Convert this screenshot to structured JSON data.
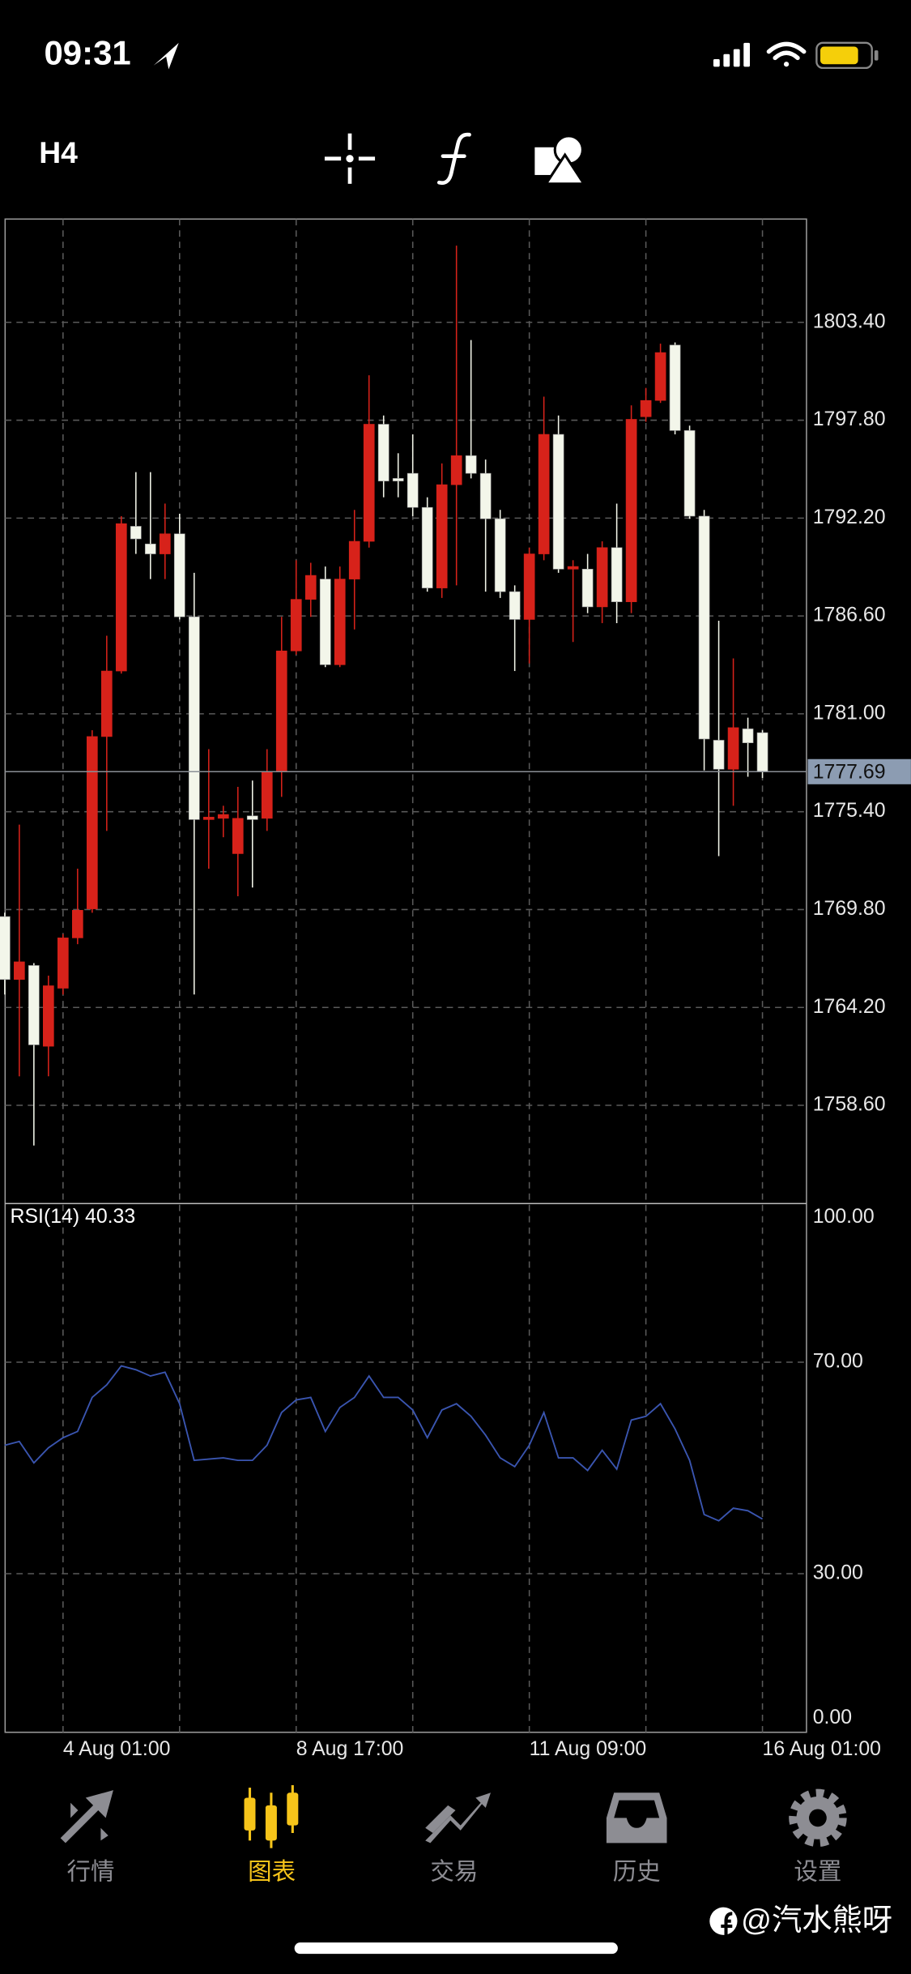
{
  "status_bar": {
    "time": "09:31"
  },
  "toolbar": {
    "timeframe": "H4"
  },
  "chart_data": [
    {
      "type": "candlestick",
      "categories": [
        null,
        null,
        null,
        null,
        "4 Aug 01:00",
        null,
        null,
        null,
        null,
        null,
        null,
        null,
        null,
        null,
        null,
        null,
        null,
        null,
        null,
        null,
        "8 Aug 17:00",
        null,
        null,
        null,
        null,
        null,
        null,
        null,
        null,
        null,
        null,
        null,
        null,
        null,
        null,
        null,
        "11 Aug 09:00",
        null,
        null,
        null,
        null,
        null,
        null,
        null,
        null,
        null,
        null,
        null,
        null,
        null,
        null,
        null,
        "16 Aug 01:00"
      ],
      "open": [
        1769.4,
        1765.8,
        1766.6,
        1761.98,
        1765.3,
        1768.18,
        1769.84,
        1779.7,
        1783.45,
        1791.73,
        1790.72,
        1790.15,
        1791.3,
        1786.55,
        1774.95,
        1775.02,
        1773.0,
        1775.16,
        1775.02,
        1777.69,
        1784.6,
        1787.55,
        1788.71,
        1783.81,
        1788.71,
        1790.87,
        1797.57,
        1794.47,
        1794.76,
        1792.81,
        1788.2,
        1794.11,
        1795.77,
        1794.76,
        1792.16,
        1787.99,
        1786.4,
        1790.15,
        1796.99,
        1789.28,
        1789.28,
        1787.12,
        1790.51,
        1787.41,
        1798.0,
        1798.93,
        1802.1,
        1797.21,
        1792.31,
        1779.49,
        1777.83,
        1780.14,
        1779.92
      ],
      "high": [
        1769.62,
        1774.66,
        1766.74,
        1766.02,
        1768.4,
        1772.14,
        1780.06,
        1785.47,
        1792.31,
        1794.83,
        1794.83,
        1793.03,
        1792.45,
        1789.07,
        1778.98,
        1775.74,
        1776.82,
        1777.18,
        1778.98,
        1786.55,
        1789.79,
        1789.64,
        1789.43,
        1789.43,
        1792.67,
        1800.37,
        1798.07,
        1795.91,
        1796.99,
        1793.39,
        1795.33,
        1807.79,
        1802.39,
        1795.55,
        1792.67,
        1788.35,
        1790.51,
        1799.15,
        1798.07,
        1789.79,
        1790.15,
        1790.87,
        1793.03,
        1798.65,
        1799.65,
        1802.18,
        1802.25,
        1797.49,
        1792.67,
        1786.33,
        1784.17,
        1780.78,
        1780.06
      ],
      "low": [
        1764.94,
        1760.26,
        1756.3,
        1760.26,
        1764.94,
        1767.82,
        1769.62,
        1774.3,
        1783.3,
        1790.15,
        1788.71,
        1788.71,
        1786.4,
        1764.94,
        1772.14,
        1773.94,
        1770.56,
        1771.06,
        1774.3,
        1776.25,
        1784.39,
        1786.55,
        1783.67,
        1783.67,
        1785.83,
        1790.51,
        1793.39,
        1793.39,
        1792.31,
        1787.99,
        1787.63,
        1788.35,
        1794.47,
        1787.99,
        1787.63,
        1783.45,
        1783.88,
        1789.79,
        1789.07,
        1785.11,
        1786.76,
        1786.19,
        1786.19,
        1786.76,
        1797.71,
        1798.79,
        1796.99,
        1792.16,
        1777.76,
        1772.86,
        1775.74,
        1777.4,
        1777.33
      ],
      "close": [
        1765.8,
        1766.81,
        1762.06,
        1765.44,
        1768.18,
        1769.76,
        1779.7,
        1783.45,
        1791.88,
        1791.01,
        1790.15,
        1791.3,
        1786.55,
        1774.95,
        1775.09,
        1775.24,
        1775.02,
        1774.95,
        1777.69,
        1784.6,
        1787.55,
        1788.92,
        1783.81,
        1788.71,
        1790.87,
        1797.57,
        1794.32,
        1794.32,
        1792.81,
        1788.2,
        1794.11,
        1795.77,
        1794.76,
        1792.16,
        1787.99,
        1786.4,
        1790.15,
        1796.99,
        1789.28,
        1789.43,
        1787.12,
        1790.51,
        1787.41,
        1797.85,
        1798.93,
        1801.67,
        1797.21,
        1792.31,
        1779.56,
        1777.83,
        1780.21,
        1779.34,
        1777.69
      ],
      "up_color": "#d7221a",
      "down_color": "#f3f6ea",
      "ylim": [
        1752.98,
        1809.31
      ],
      "yticks": [
        {
          "value": 1758.6,
          "label": "1758.60"
        },
        {
          "value": 1764.2,
          "label": "1764.20"
        },
        {
          "value": 1769.8,
          "label": "1769.80"
        },
        {
          "value": 1775.4,
          "label": "1775.40"
        },
        {
          "value": 1781,
          "label": "1781.00"
        },
        {
          "value": 1786.6,
          "label": "1786.60"
        },
        {
          "value": 1792.2,
          "label": "1792.20"
        },
        {
          "value": 1797.8,
          "label": "1797.80"
        },
        {
          "value": 1803.4,
          "label": "1803.40"
        }
      ],
      "last_price": 1777.69,
      "grid": true
    },
    {
      "type": "line",
      "title": "RSI(14) 40.33",
      "values": [
        54.29,
        55.0,
        50.95,
        53.81,
        55.71,
        56.9,
        63.33,
        65.71,
        69.29,
        68.57,
        67.38,
        68.1,
        62.14,
        51.43,
        51.67,
        51.9,
        51.43,
        51.43,
        54.29,
        60.48,
        62.86,
        63.33,
        56.9,
        61.43,
        63.33,
        67.38,
        63.33,
        63.33,
        60.95,
        55.71,
        60.95,
        62.14,
        59.76,
        56.19,
        51.9,
        50.24,
        54.29,
        60.48,
        51.9,
        51.9,
        49.52,
        53.33,
        49.76,
        59.05,
        59.76,
        62.14,
        57.38,
        51.43,
        41.19,
        40.0,
        42.38,
        41.9,
        40.33
      ],
      "color": "#3a55b0",
      "ylim": [
        0,
        100
      ],
      "yticks": [
        {
          "value": 0,
          "label": "0.00"
        },
        {
          "value": 30,
          "label": "30.00"
        },
        {
          "value": 70,
          "label": "70.00"
        },
        {
          "value": 100,
          "label": "100.00"
        }
      ],
      "grid": true
    }
  ],
  "tab_bar": {
    "items": [
      "行情",
      "图表",
      "交易",
      "历史",
      "设置"
    ],
    "active": 1
  },
  "watermark": "@汽水熊呀"
}
